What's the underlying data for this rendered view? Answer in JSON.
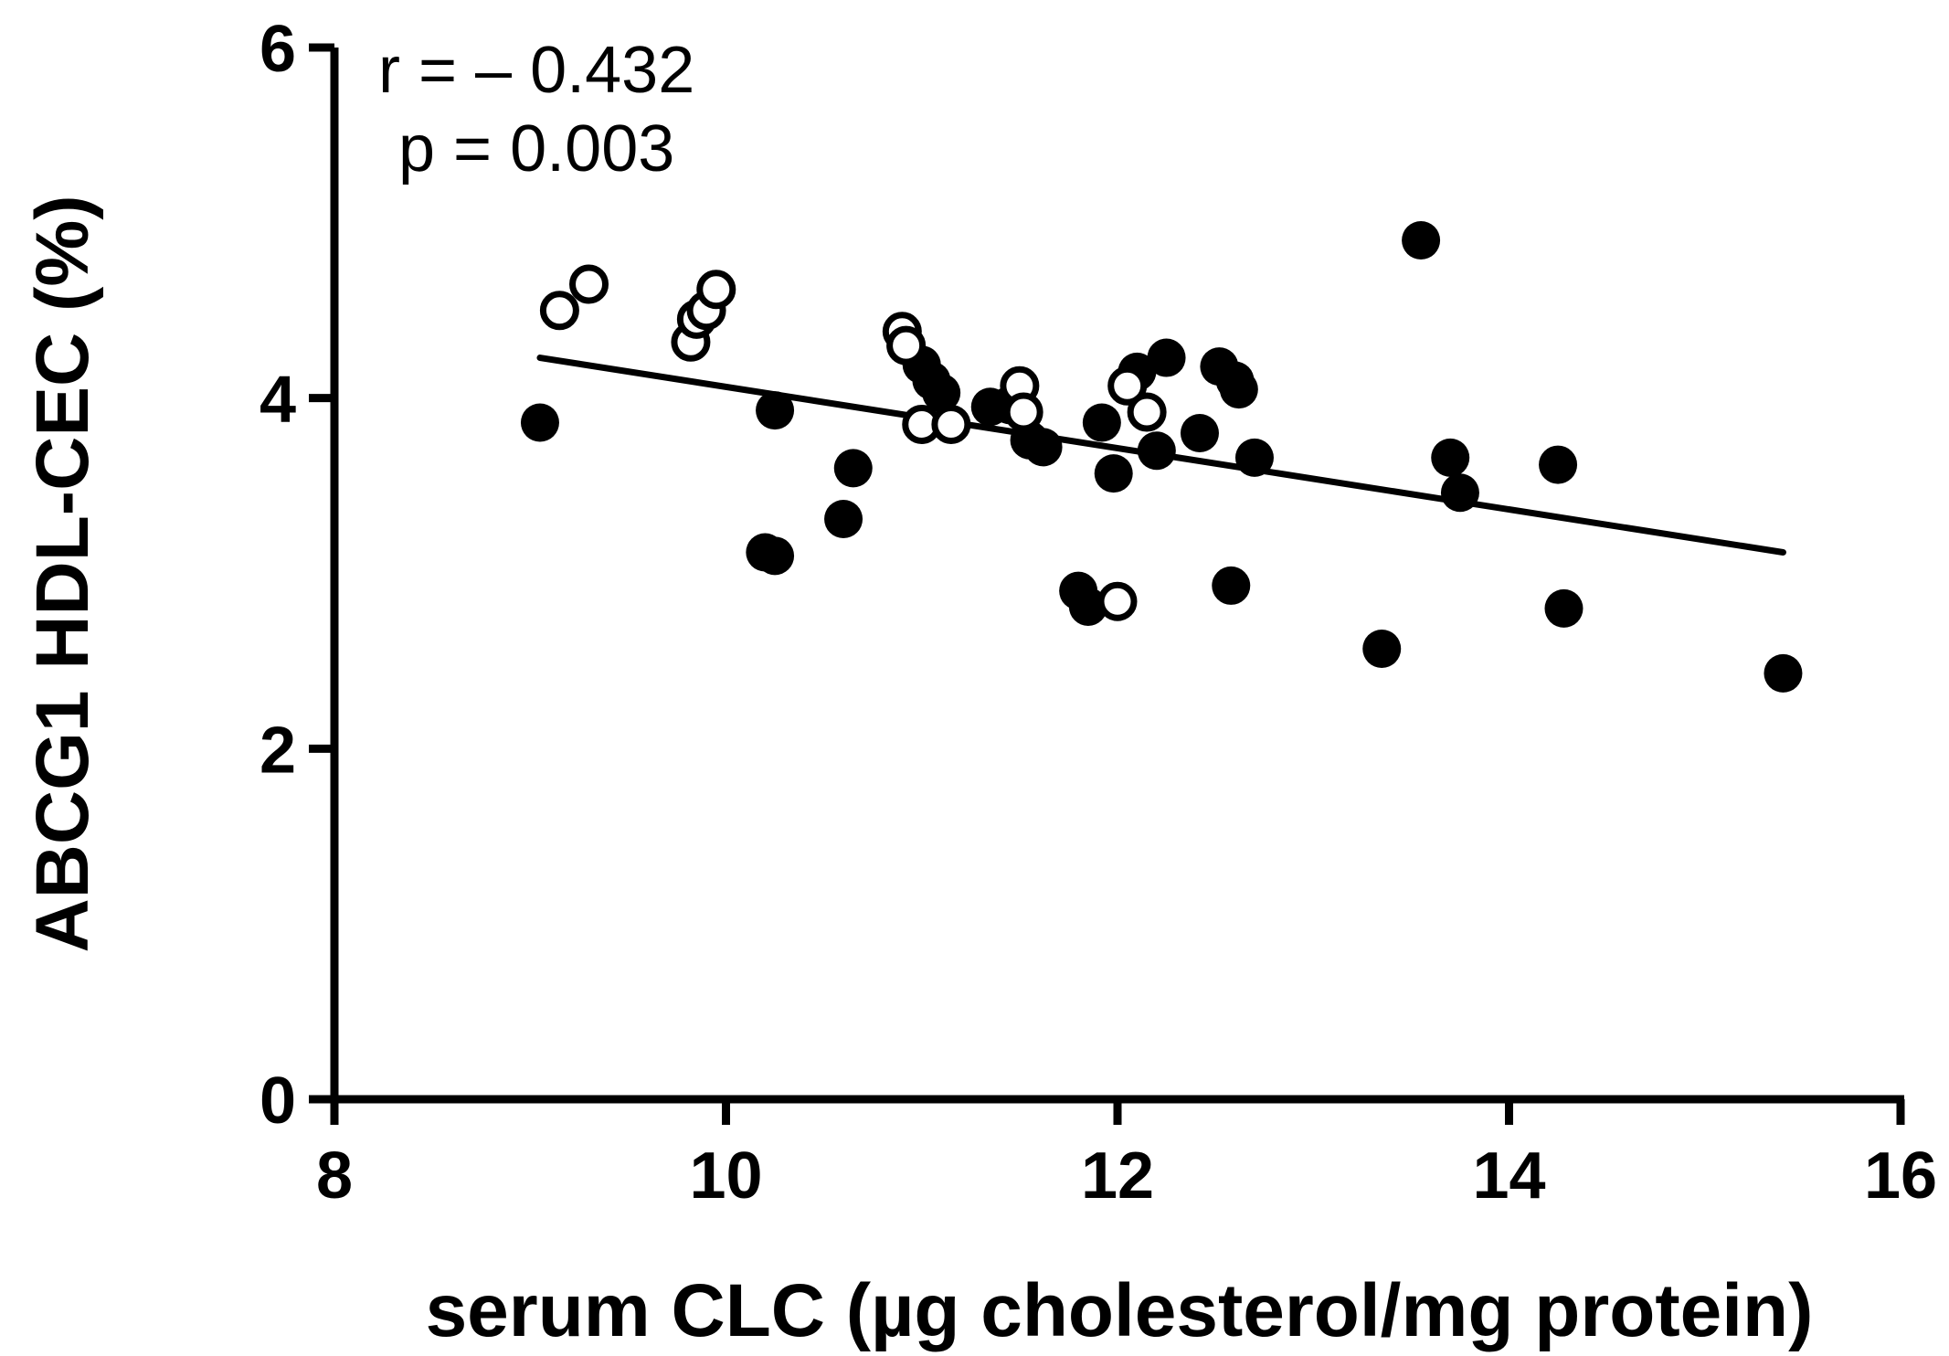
{
  "chart_data": {
    "type": "scatter",
    "title": "",
    "xlabel": "serum CLC (µg cholesterol/mg protein)",
    "ylabel": "ABCG1 HDL-CEC (%)",
    "xlim": [
      8,
      16
    ],
    "ylim": [
      0,
      6
    ],
    "xticks": [
      "8",
      "10",
      "12",
      "14",
      "16"
    ],
    "yticks": [
      "0",
      "2",
      "4",
      "6"
    ],
    "annotations": {
      "r": "r = – 0.432",
      "p": "p = 0.003"
    },
    "regression_line": {
      "x": [
        9.05,
        15.4
      ],
      "y": [
        4.23,
        3.12
      ]
    },
    "series": [
      {
        "name": "filled",
        "marker": "filled-circle",
        "x": [
          9.05,
          10.25,
          10.2,
          10.25,
          10.65,
          10.6,
          11.0,
          11.05,
          11.1,
          11.35,
          11.45,
          11.55,
          11.62,
          11.8,
          11.85,
          11.92,
          11.98,
          12.1,
          12.2,
          12.25,
          12.42,
          12.52,
          12.58,
          12.6,
          12.62,
          12.7,
          13.35,
          13.55,
          13.7,
          13.75,
          14.25,
          14.28,
          15.4
        ],
        "y": [
          3.86,
          3.93,
          3.12,
          3.1,
          3.6,
          3.31,
          4.19,
          4.1,
          4.03,
          3.95,
          3.96,
          3.76,
          3.72,
          2.9,
          2.81,
          3.86,
          3.57,
          4.15,
          3.7,
          4.23,
          3.8,
          4.18,
          2.93,
          4.1,
          4.05,
          3.66,
          2.57,
          4.9,
          3.66,
          3.46,
          3.62,
          2.8,
          2.43
        ]
      },
      {
        "name": "open",
        "marker": "open-circle",
        "x": [
          9.15,
          9.3,
          9.82,
          9.85,
          9.9,
          9.95,
          10.9,
          10.92,
          11.0,
          11.15,
          11.5,
          11.52,
          12.0,
          12.05,
          12.15
        ],
        "y": [
          4.5,
          4.65,
          4.32,
          4.45,
          4.5,
          4.62,
          4.38,
          4.3,
          3.85,
          3.85,
          4.07,
          3.92,
          2.84,
          4.07,
          3.92
        ]
      }
    ]
  }
}
